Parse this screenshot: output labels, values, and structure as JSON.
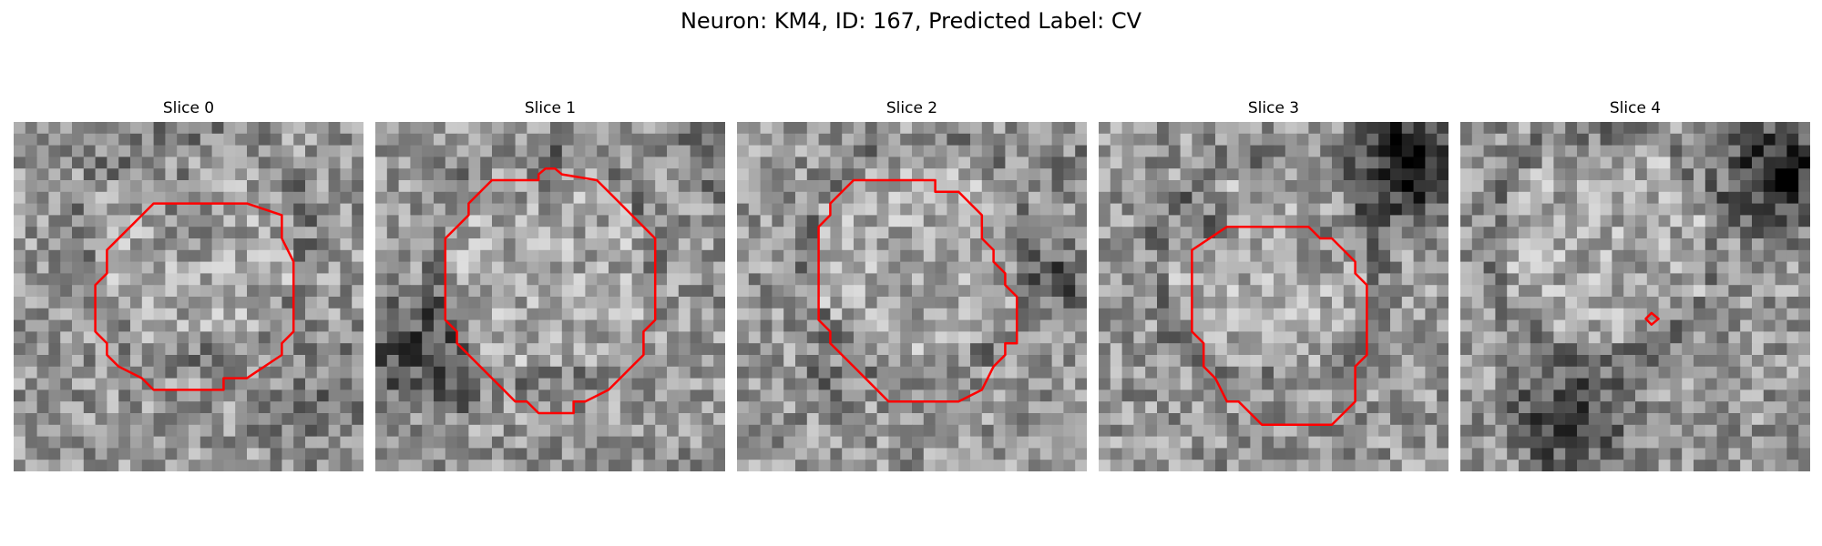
{
  "figure": {
    "title": "Neuron: KM4, ID: 167, Predicted Label: CV"
  },
  "panels": [
    {
      "title": "Slice 0"
    },
    {
      "title": "Slice 1"
    },
    {
      "title": "Slice 2"
    },
    {
      "title": "Slice 3"
    },
    {
      "title": "Slice 4"
    }
  ],
  "colors": {
    "outline": "#ff0000",
    "grayscale_colormap": "gray"
  }
}
